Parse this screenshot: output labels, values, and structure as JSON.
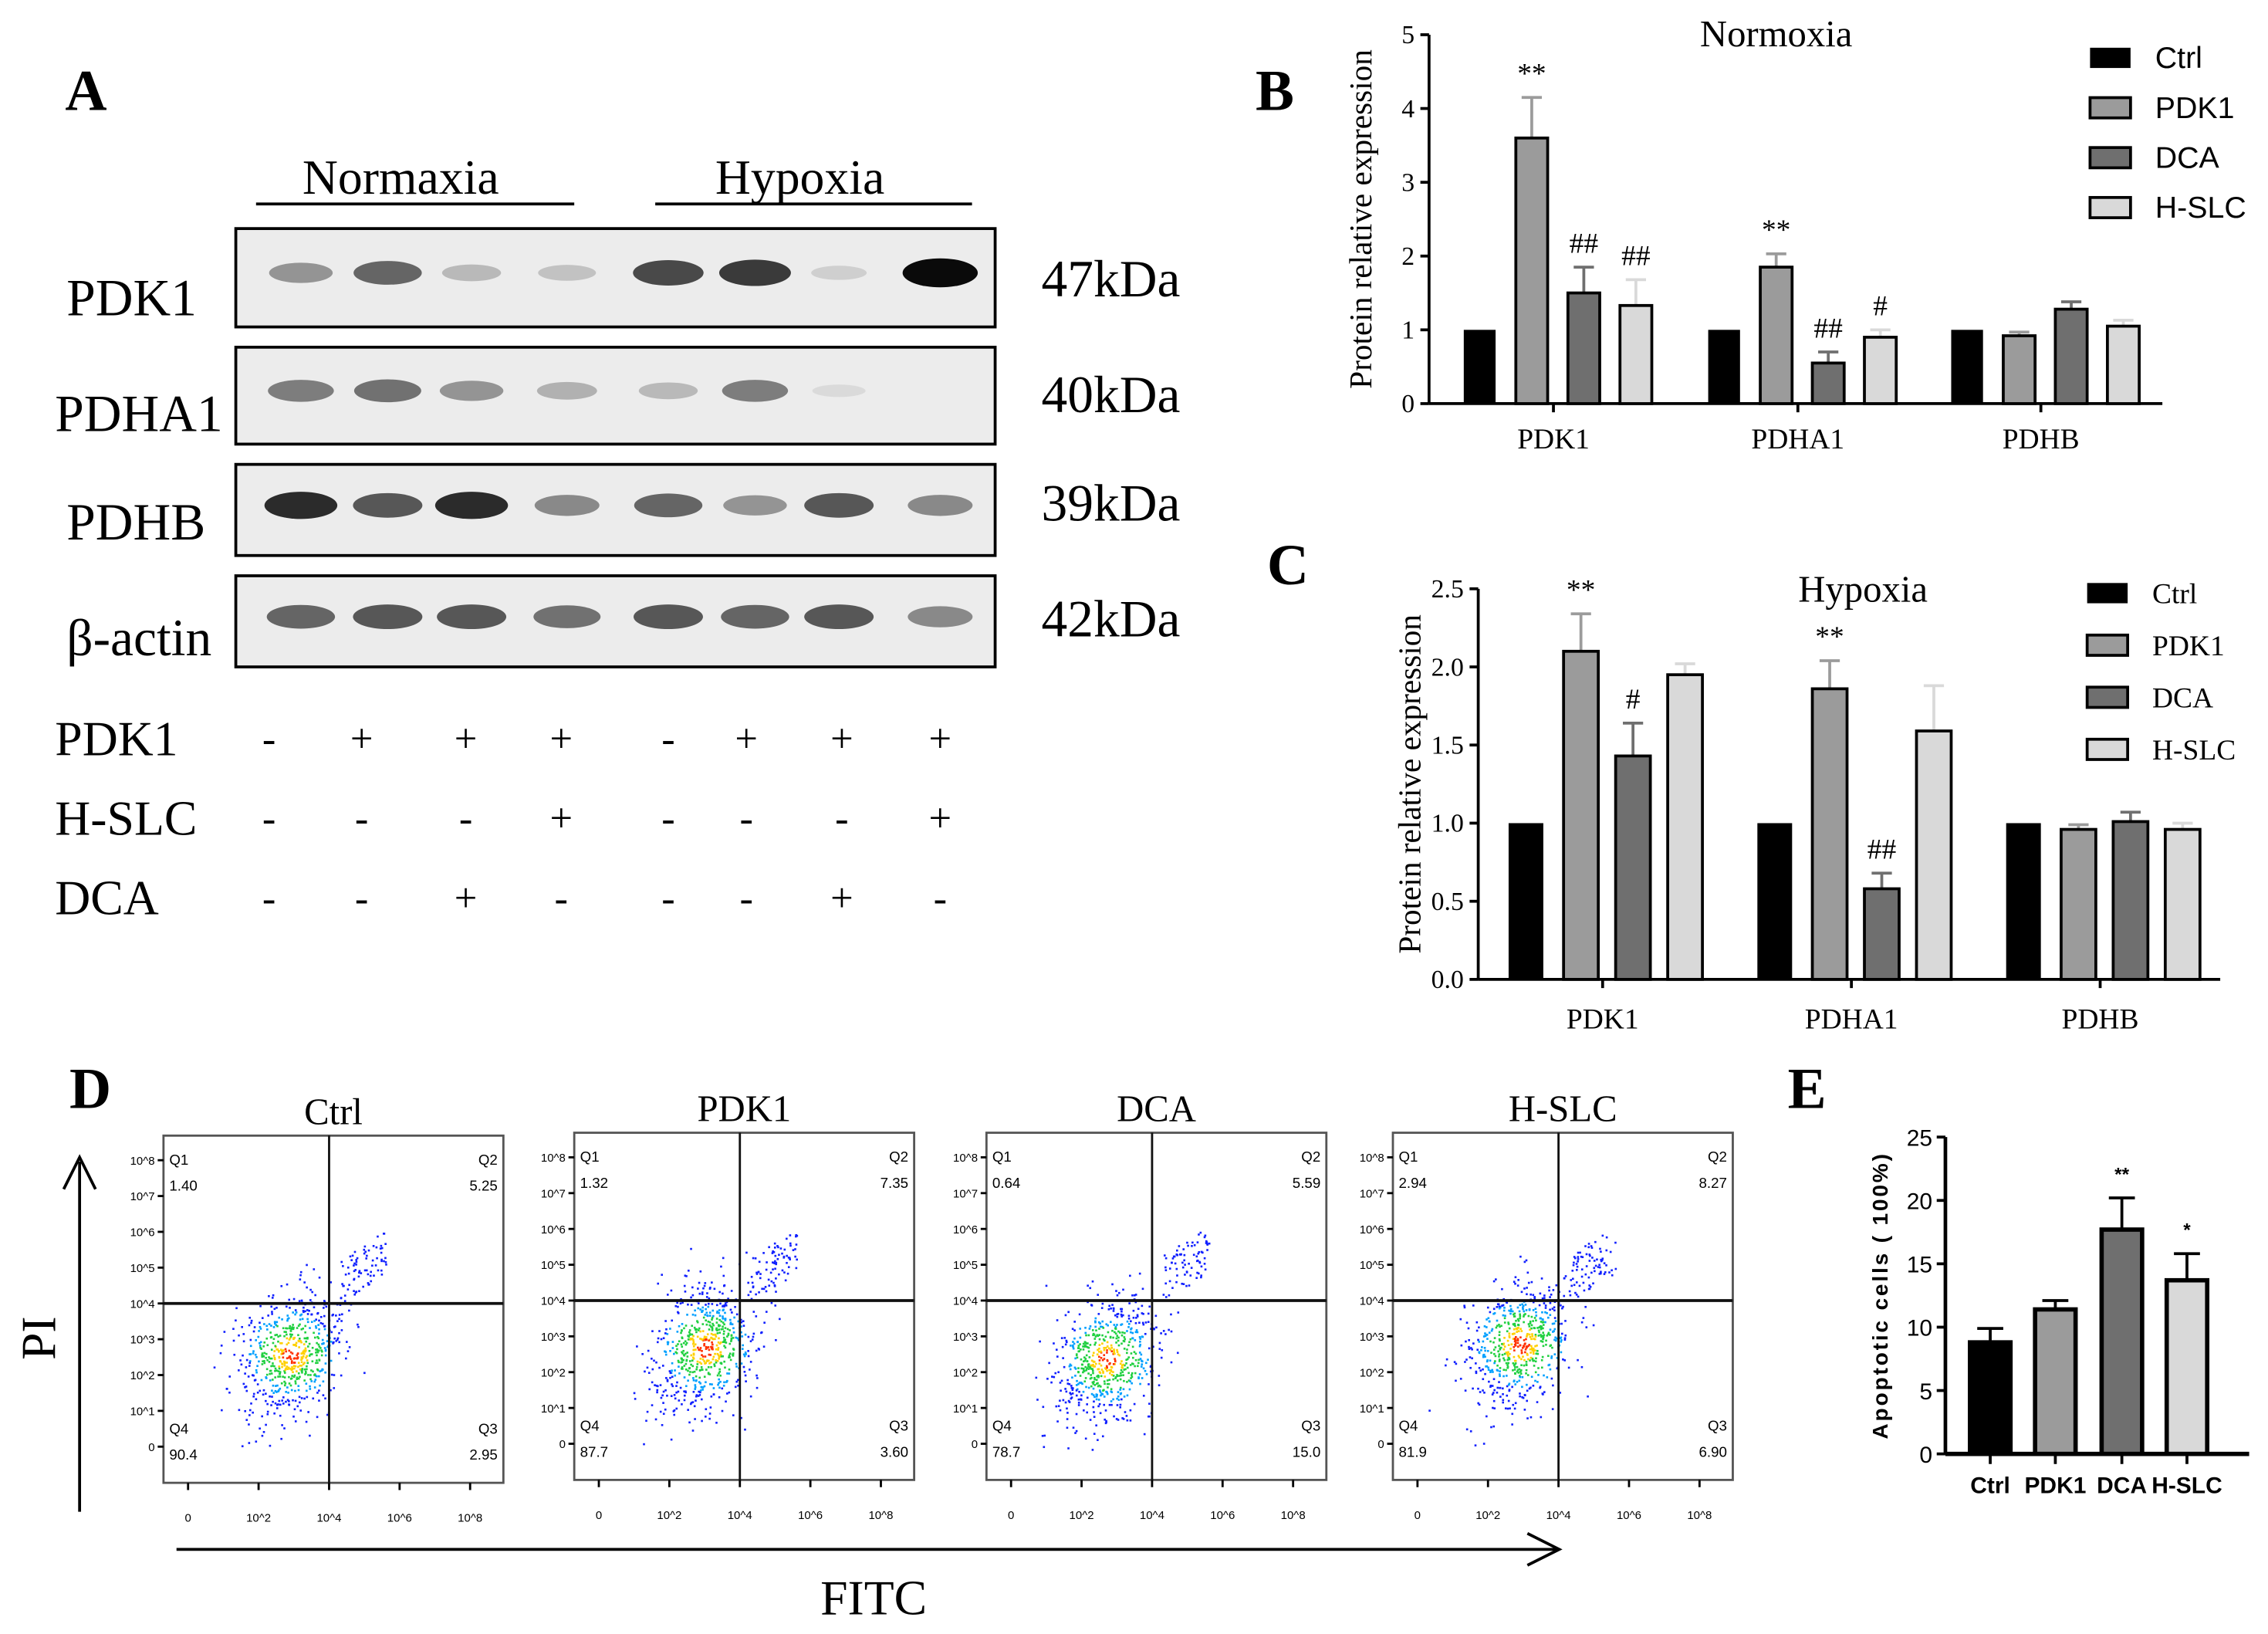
{
  "panel_labels": {
    "a": "A",
    "b": "B",
    "c": "C",
    "d": "D",
    "e": "E"
  },
  "western_blot": {
    "conditions": [
      "Normaxia",
      "Hypoxia"
    ],
    "proteins": [
      {
        "name": "PDK1",
        "kda": "47kDa",
        "band_intensity": [
          0.5,
          0.7,
          0.3,
          0.25,
          0.8,
          0.85,
          0.15,
          1.0
        ]
      },
      {
        "name": "PDHA1",
        "kda": "40kDa",
        "band_intensity": [
          0.6,
          0.65,
          0.5,
          0.35,
          0.3,
          0.6,
          0.05,
          0.0
        ]
      },
      {
        "name": "PDHB",
        "kda": "39kDa",
        "band_intensity": [
          0.9,
          0.75,
          0.9,
          0.55,
          0.7,
          0.5,
          0.75,
          0.55
        ]
      },
      {
        "name": "β-actin",
        "kda": "42kDa",
        "band_intensity": [
          0.7,
          0.75,
          0.75,
          0.65,
          0.75,
          0.7,
          0.75,
          0.55
        ]
      }
    ],
    "treatments": [
      {
        "name": "PDK1",
        "signs": [
          "-",
          "+",
          "+",
          "+",
          "-",
          "+",
          "+",
          "+"
        ]
      },
      {
        "name": "H-SLC",
        "signs": [
          "-",
          "-",
          "-",
          "+",
          "-",
          "-",
          "-",
          "+"
        ]
      },
      {
        "name": "DCA",
        "signs": [
          "-",
          "-",
          "+",
          "-",
          "-",
          "-",
          "+",
          "-"
        ]
      }
    ]
  },
  "colors": {
    "Ctrl": "#000000",
    "PDK1": "#9b9b9b",
    "DCA": "#6f6f6f",
    "H-SLC": "#d9d9d9"
  },
  "chart_data": [
    {
      "id": "B",
      "type": "bar",
      "title": "Normoxia",
      "xlabel": "",
      "ylabel": "Protein relative expression",
      "ylim": [
        0,
        5
      ],
      "yticks": [
        "0",
        "1",
        "2",
        "3",
        "4",
        "5"
      ],
      "categories": [
        "PDK1",
        "PDHA1",
        "PDHB"
      ],
      "legend_position": "top-right",
      "series": [
        {
          "name": "Ctrl",
          "values": [
            1,
            1,
            1
          ],
          "errors": [
            0,
            0,
            0
          ],
          "annotations": [
            "",
            "",
            ""
          ]
        },
        {
          "name": "PDK1",
          "values": [
            3.6,
            1.85,
            0.92
          ],
          "errors": [
            0.55,
            0.18,
            0.05
          ],
          "annotations": [
            "**",
            "**",
            ""
          ]
        },
        {
          "name": "DCA",
          "values": [
            1.5,
            0.55,
            1.28
          ],
          "errors": [
            0.35,
            0.15,
            0.1
          ],
          "annotations": [
            "##",
            "##",
            ""
          ]
        },
        {
          "name": "H-SLC",
          "values": [
            1.33,
            0.9,
            1.05
          ],
          "errors": [
            0.35,
            0.1,
            0.08
          ],
          "annotations": [
            "##",
            "#",
            ""
          ]
        }
      ]
    },
    {
      "id": "C",
      "type": "bar",
      "title": "Hypoxia",
      "xlabel": "",
      "ylabel": "Protein relative expression",
      "ylim": [
        0,
        2.5
      ],
      "yticks": [
        "0.0",
        "0.5",
        "1.0",
        "1.5",
        "2.0",
        "2.5"
      ],
      "categories": [
        "PDK1",
        "PDHA1",
        "PDHB"
      ],
      "legend_position": "top-right",
      "series": [
        {
          "name": "Ctrl",
          "values": [
            1,
            1,
            1
          ],
          "errors": [
            0,
            0,
            0
          ],
          "annotations": [
            "",
            "",
            ""
          ]
        },
        {
          "name": "PDK1",
          "values": [
            2.1,
            1.86,
            0.96
          ],
          "errors": [
            0.24,
            0.18,
            0.03
          ],
          "annotations": [
            "**",
            "**",
            ""
          ]
        },
        {
          "name": "DCA",
          "values": [
            1.43,
            0.58,
            1.01
          ],
          "errors": [
            0.21,
            0.1,
            0.06
          ],
          "annotations": [
            "#",
            "##",
            ""
          ]
        },
        {
          "name": "H-SLC",
          "values": [
            1.95,
            1.59,
            0.96
          ],
          "errors": [
            0.07,
            0.29,
            0.04
          ],
          "annotations": [
            "",
            "",
            ""
          ]
        }
      ]
    },
    {
      "id": "D",
      "type": "scatter",
      "xlabel": "FITC",
      "ylabel": "PI",
      "x_ticks": [
        "0",
        "10^2",
        "10^4",
        "10^6",
        "10^8"
      ],
      "y_ticks": [
        "0",
        "10^1",
        "10^2",
        "10^3",
        "10^4",
        "10^5",
        "10^6",
        "10^7",
        "10^8"
      ],
      "gate_decade": 4,
      "plots": [
        {
          "title": "Ctrl",
          "Q1": "1.40",
          "Q2": "5.25",
          "Q3": "2.95",
          "Q4": "90.4"
        },
        {
          "title": "PDK1",
          "Q1": "1.32",
          "Q2": "7.35",
          "Q3": "3.60",
          "Q4": "87.7"
        },
        {
          "title": "DCA",
          "Q1": "0.64",
          "Q2": "5.59",
          "Q3": "15.0",
          "Q4": "78.7"
        },
        {
          "title": "H-SLC",
          "Q1": "2.94",
          "Q2": "8.27",
          "Q3": "6.90",
          "Q4": "81.9"
        }
      ],
      "quadrant_labels": [
        "Q1",
        "Q2",
        "Q3",
        "Q4"
      ]
    },
    {
      "id": "E",
      "type": "bar",
      "xlabel": "",
      "ylabel": "Apoptotic cells ( 100%)",
      "ylim": [
        0,
        25
      ],
      "yticks": [
        "0",
        "5",
        "10",
        "15",
        "20",
        "25"
      ],
      "categories": [
        "Ctrl",
        "PDK1",
        "DCA",
        "H-SLC"
      ],
      "values": [
        8.8,
        11.4,
        17.7,
        13.7
      ],
      "errors": [
        1.1,
        0.7,
        2.5,
        2.1
      ],
      "annotations": [
        "",
        "",
        "**",
        "*"
      ]
    }
  ]
}
